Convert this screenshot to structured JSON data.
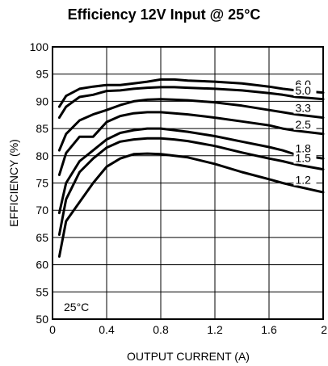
{
  "chart_data": {
    "type": "line",
    "title": "Efficiency 12V Input @ 25°C",
    "xlabel": "OUTPUT CURRENT (A)",
    "ylabel": "EFFICIENCY (%)",
    "xlim": [
      0,
      2
    ],
    "ylim": [
      50,
      100
    ],
    "x_ticks": [
      "0",
      "0.4",
      "0.8",
      "1.2",
      "1.6",
      "2"
    ],
    "x_tick_values": [
      0,
      0.4,
      0.8,
      1.2,
      1.6,
      2.0
    ],
    "y_ticks": [
      "50",
      "55",
      "60",
      "65",
      "70",
      "75",
      "80",
      "85",
      "90",
      "95",
      "100"
    ],
    "y_tick_values": [
      50,
      55,
      60,
      65,
      70,
      75,
      80,
      85,
      90,
      95,
      100
    ],
    "grid": true,
    "annotation": "25°C",
    "series": [
      {
        "name": "6.0",
        "x": [
          0.05,
          0.1,
          0.2,
          0.3,
          0.4,
          0.5,
          0.6,
          0.7,
          0.8,
          0.9,
          1.0,
          1.2,
          1.4,
          1.6,
          1.7,
          1.8,
          2.0
        ],
        "y": [
          89,
          91,
          92.3,
          92.7,
          93,
          93,
          93.3,
          93.6,
          94,
          94,
          93.8,
          93.6,
          93.3,
          92.7,
          92.3,
          92,
          91.6
        ]
      },
      {
        "name": "5.0",
        "x": [
          0.05,
          0.1,
          0.2,
          0.3,
          0.4,
          0.5,
          0.6,
          0.7,
          0.8,
          0.9,
          1.0,
          1.2,
          1.4,
          1.6,
          1.7,
          1.8,
          2.0
        ],
        "y": [
          87,
          89,
          90.8,
          91.2,
          91.9,
          92,
          92.3,
          92.5,
          92.6,
          92.6,
          92.5,
          92.3,
          92,
          91.5,
          91.2,
          90.8,
          90.4
        ]
      },
      {
        "name": "3.3",
        "x": [
          0.05,
          0.1,
          0.2,
          0.3,
          0.4,
          0.5,
          0.6,
          0.7,
          0.8,
          0.9,
          1.0,
          1.2,
          1.4,
          1.6,
          1.7,
          1.8,
          2.0
        ],
        "y": [
          81,
          84,
          86.5,
          87.6,
          88.4,
          89.3,
          90,
          90.3,
          90.4,
          90.3,
          90.2,
          89.8,
          89.2,
          88.4,
          88,
          87.6,
          87
        ]
      },
      {
        "name": "2.5",
        "x": [
          0.05,
          0.1,
          0.2,
          0.3,
          0.4,
          0.5,
          0.6,
          0.7,
          0.8,
          0.9,
          1.0,
          1.2,
          1.4,
          1.6,
          1.7,
          1.8,
          2.0
        ],
        "y": [
          76.5,
          80.5,
          83.5,
          83.5,
          86.2,
          87.3,
          87.8,
          88,
          88,
          87.8,
          87.6,
          87,
          86.3,
          85.6,
          85,
          84.6,
          84
        ]
      },
      {
        "name": "1.8",
        "x": [
          0.05,
          0.1,
          0.2,
          0.3,
          0.4,
          0.5,
          0.6,
          0.7,
          0.8,
          0.9,
          1.0,
          1.2,
          1.4,
          1.6,
          1.7,
          1.8,
          2.0
        ],
        "y": [
          69.5,
          75,
          79,
          81,
          83,
          84.2,
          84.7,
          85,
          85,
          84.7,
          84.4,
          83.6,
          82.6,
          81.6,
          81,
          80.2,
          79.5
        ]
      },
      {
        "name": "1.5",
        "x": [
          0.05,
          0.1,
          0.2,
          0.3,
          0.4,
          0.5,
          0.6,
          0.7,
          0.8,
          0.9,
          1.0,
          1.2,
          1.4,
          1.6,
          1.7,
          1.8,
          2.0
        ],
        "y": [
          65.5,
          72,
          77,
          79.5,
          81.5,
          82.6,
          83,
          83.2,
          83.2,
          83,
          82.7,
          81.8,
          80.6,
          79.5,
          79,
          78.4,
          77.5
        ]
      },
      {
        "name": "1.2",
        "x": [
          0.05,
          0.1,
          0.2,
          0.3,
          0.4,
          0.5,
          0.6,
          0.7,
          0.8,
          0.9,
          1.0,
          1.2,
          1.4,
          1.6,
          1.7,
          1.8,
          2.0
        ],
        "y": [
          61.5,
          68,
          71.5,
          75,
          78,
          79.5,
          80.3,
          80.4,
          80.3,
          80,
          79.7,
          78.5,
          77,
          75.7,
          75,
          74.4,
          73.3
        ]
      }
    ]
  }
}
